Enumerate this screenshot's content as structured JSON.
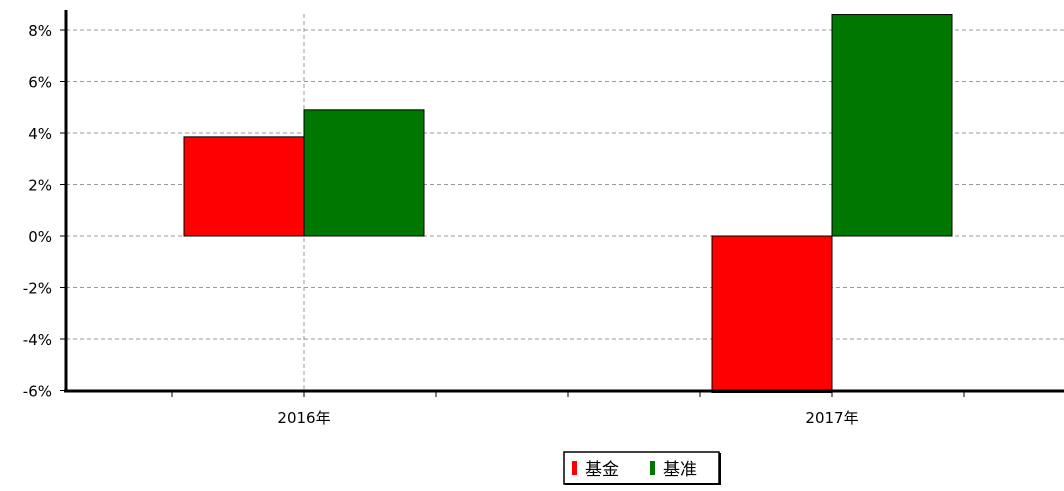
{
  "chart_data": {
    "type": "bar",
    "categories": [
      "2016年",
      "2017年"
    ],
    "series": [
      {
        "name": "基金",
        "color": "#ff0000",
        "values": [
          3.85,
          -6.6
        ]
      },
      {
        "name": "基准",
        "color": "#007700",
        "values": [
          4.9,
          8.6
        ]
      }
    ],
    "ylim": [
      -6,
      8
    ],
    "yticks": [
      "8%",
      "6%",
      "4%",
      "2%",
      "0%",
      "-2%",
      "-4%",
      "-6%"
    ],
    "grid": true,
    "legend": "bottom-center"
  }
}
